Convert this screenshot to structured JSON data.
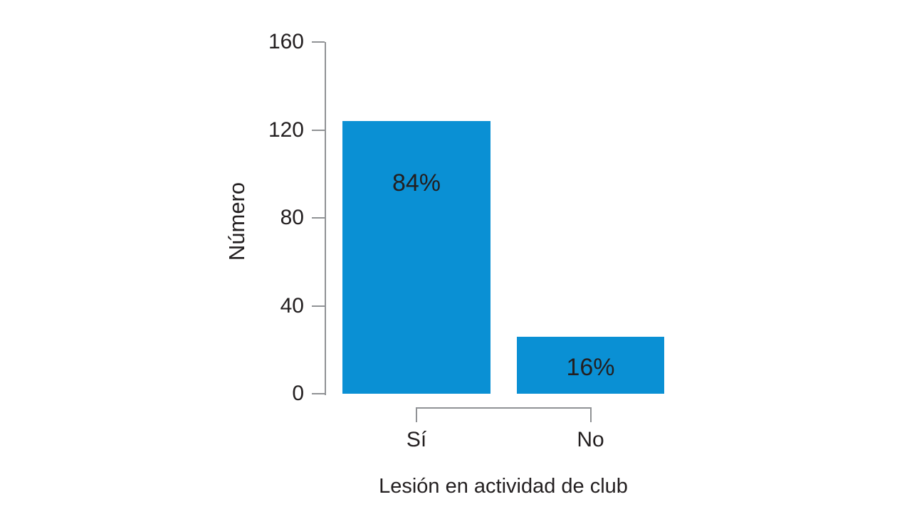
{
  "chart_data": {
    "type": "bar",
    "title": "",
    "categories": [
      "Sí",
      "No"
    ],
    "values": [
      124,
      26
    ],
    "bar_labels": [
      "84%",
      "16%"
    ],
    "xlabel": "Lesión en actividad de club",
    "ylabel": "Número",
    "ylim": [
      0,
      160
    ],
    "yticks": [
      0,
      40,
      80,
      120,
      160
    ],
    "grid": false,
    "legend": null,
    "colors": {
      "bar": "#0a90d4",
      "axis": "#909295",
      "text": "#231f20",
      "background": "#ffffff"
    }
  }
}
